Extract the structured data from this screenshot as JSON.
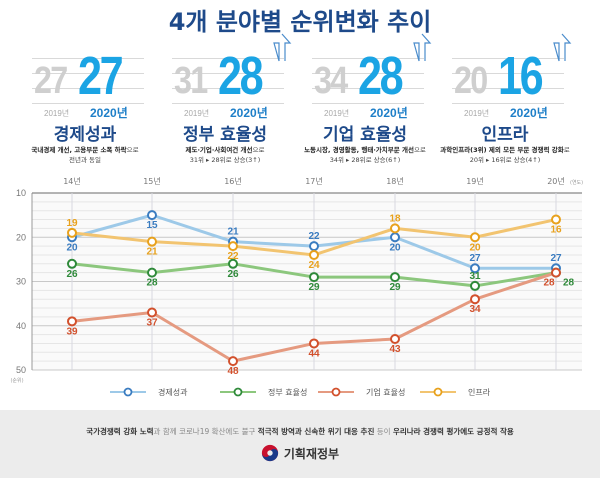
{
  "title": "4개 분야별 순위변화 추이",
  "cards": [
    {
      "old_rank": "27",
      "new_rank": "27",
      "old_year": "2019년",
      "new_year": "2020년",
      "name": "경제성과",
      "desc_line1_bold": "국내경제 개선, 고용부문 소폭 하락",
      "desc_line1_rest": "으로",
      "desc_line2": "전년과 동일",
      "has_arrow": false
    },
    {
      "old_rank": "31",
      "new_rank": "28",
      "old_year": "2019년",
      "new_year": "2020년",
      "name": "정부 효율성",
      "desc_line1_bold": "제도·기업·사회여건 개선",
      "desc_line1_rest": "으로",
      "desc_line2": "31위 ▸ 28위로 상승(3↑)",
      "has_arrow": true
    },
    {
      "old_rank": "34",
      "new_rank": "28",
      "old_year": "2019년",
      "new_year": "2020년",
      "name": "기업 효율성",
      "desc_line1_bold": "노동시장, 경영활동, 행태·가치부문 개선",
      "desc_line1_rest": "으로",
      "desc_line2": "34위 ▸ 28위로 상승(6↑)",
      "has_arrow": true
    },
    {
      "old_rank": "20",
      "new_rank": "16",
      "old_year": "2019년",
      "new_year": "2020년",
      "name": "인프라",
      "desc_line1_bold": "과학인프라(3위) 제외 모든 부문 경쟁력 강화",
      "desc_line1_rest": "로",
      "desc_line2": "20위 ▸ 16위로 상승(4↑)",
      "has_arrow": true
    }
  ],
  "chart_data": {
    "type": "line",
    "title": "4개 분야별 순위변화 추이",
    "x": [
      "14년",
      "15년",
      "16년",
      "17년",
      "18년",
      "19년",
      "20년"
    ],
    "xlabel": "(연도)",
    "ylabel": "(순위)",
    "ylim": [
      10,
      50
    ],
    "y_inverted": true,
    "yticks": [
      10,
      20,
      30,
      40,
      50
    ],
    "grid": true,
    "legend_position": "bottom",
    "series": [
      {
        "name": "경제성과",
        "color": "#9dc9e8",
        "label_color": "#3a7cc0",
        "values": [
          20,
          15,
          21,
          22,
          20,
          27,
          27
        ]
      },
      {
        "name": "정부 효율성",
        "color": "#8cc77d",
        "label_color": "#2f8a3a",
        "values": [
          26,
          28,
          26,
          29,
          29,
          31,
          28
        ]
      },
      {
        "name": "기업 효율성",
        "color": "#e59a80",
        "label_color": "#d2502c",
        "values": [
          39,
          37,
          48,
          44,
          43,
          34,
          28
        ]
      },
      {
        "name": "인프라",
        "color": "#f2c470",
        "label_color": "#e8a11c",
        "values": [
          19,
          21,
          22,
          24,
          18,
          20,
          16
        ]
      }
    ]
  },
  "footer": {
    "segments": [
      {
        "text": "국가경쟁력 강화 노력",
        "bold": true
      },
      {
        "text": "과 함께 코로나19 확산에도 불구 ",
        "bold": false
      },
      {
        "text": "적극적 방역과 신속한 위기 대응 추진",
        "bold": true
      },
      {
        "text": " 등이 ",
        "bold": false
      },
      {
        "text": "우리나라 경쟁력 평가에도 긍정적 작용",
        "bold": true
      }
    ],
    "logo_text": "기획재정부"
  }
}
